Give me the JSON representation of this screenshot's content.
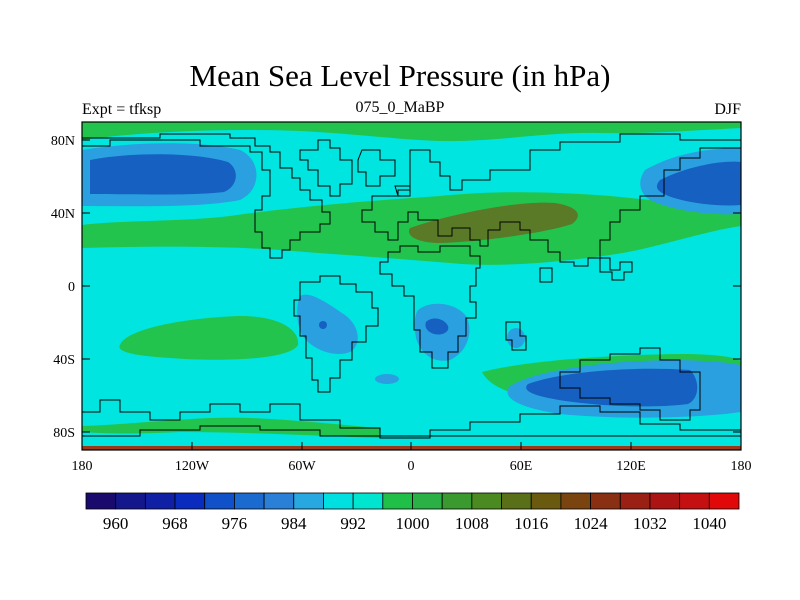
{
  "title": "Mean Sea Level Pressure (in hPa)",
  "subtitle_left": "Expt = tfksp",
  "subtitle_center": "075_0_MaBP",
  "subtitle_right": "DJF",
  "colors": {
    "ocean_base": "#00e5e0",
    "low_light": "#33bfe6",
    "low_mid": "#2a7fd0",
    "low_deep": "#1560c0",
    "high_light": "#22c44e",
    "high_mid": "#4a9a2a",
    "high_deep": "#5a6a20",
    "edge_strip": "#9a3a1a"
  },
  "map": {
    "lat_ticks": [
      "80N",
      "40N",
      "0",
      "40S",
      "80S"
    ],
    "lon_ticks": [
      "180",
      "120W",
      "60W",
      "0",
      "60E",
      "120E",
      "180"
    ]
  },
  "colorbar": {
    "colors": [
      "#1a0a6e",
      "#14168c",
      "#1020a4",
      "#0a2cbe",
      "#1050c8",
      "#1a6ad0",
      "#2a80d6",
      "#28a8e0",
      "#00e0e0",
      "#00e5d0",
      "#20c048",
      "#2ab044",
      "#3a9a30",
      "#4a8a20",
      "#5a7018",
      "#6a5a10",
      "#7a4410",
      "#8a3012",
      "#9a2014",
      "#ac1414",
      "#c41010",
      "#e00808"
    ],
    "labels": [
      "960",
      "968",
      "976",
      "984",
      "992",
      "1000",
      "1008",
      "1016",
      "1024",
      "1032",
      "1040"
    ]
  }
}
